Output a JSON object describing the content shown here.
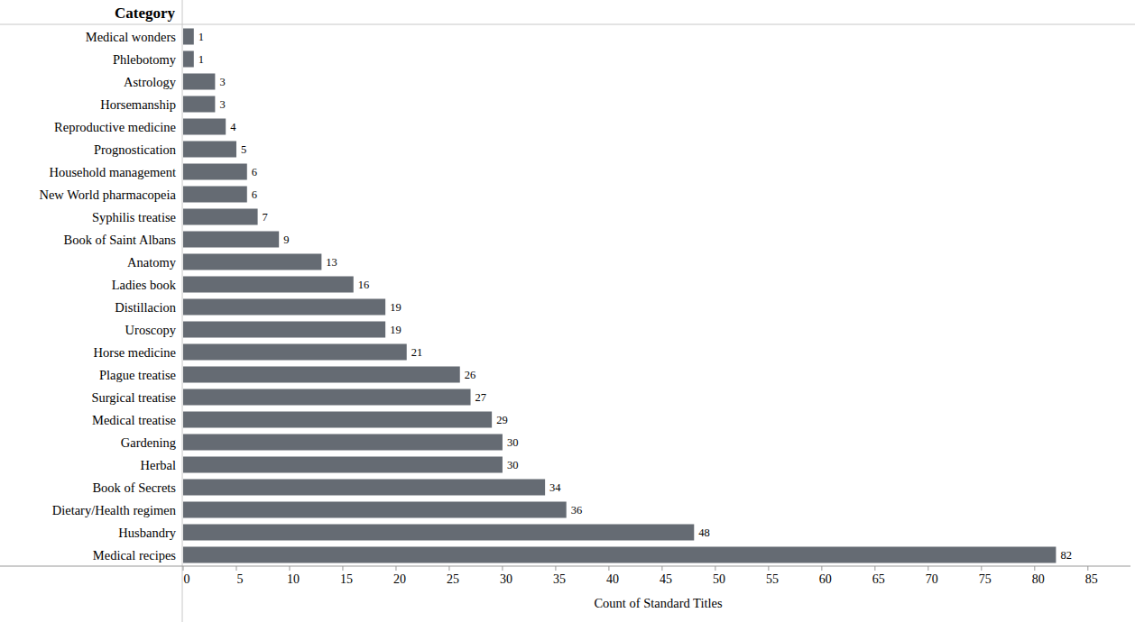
{
  "chart_data": {
    "type": "bar",
    "orientation": "horizontal",
    "ylabel": "Category",
    "xlabel": "Count of Standard Titles",
    "categories": [
      "Medical wonders",
      "Phlebotomy",
      "Astrology",
      "Horsemanship",
      "Reproductive medicine",
      "Prognostication",
      "Household management",
      "New World pharmacopeia",
      "Syphilis treatise",
      "Book of Saint Albans",
      "Anatomy",
      "Ladies book",
      "Distillacion",
      "Uroscopy",
      "Horse medicine",
      "Plague treatise",
      "Surgical treatise",
      "Medical treatise",
      "Gardening",
      "Herbal",
      "Book of Secrets",
      "Dietary/Health regimen",
      "Husbandry",
      "Medical recipes"
    ],
    "values": [
      1,
      1,
      3,
      3,
      4,
      5,
      6,
      6,
      7,
      9,
      13,
      16,
      19,
      19,
      21,
      26,
      27,
      29,
      30,
      30,
      34,
      36,
      48,
      82
    ],
    "color": "#656b73",
    "xlim": [
      0,
      89
    ],
    "xticks": [
      0,
      5,
      10,
      15,
      20,
      25,
      30,
      35,
      40,
      45,
      50,
      55,
      60,
      65,
      70,
      75,
      80,
      85
    ],
    "grid": false,
    "data_labels": true
  }
}
